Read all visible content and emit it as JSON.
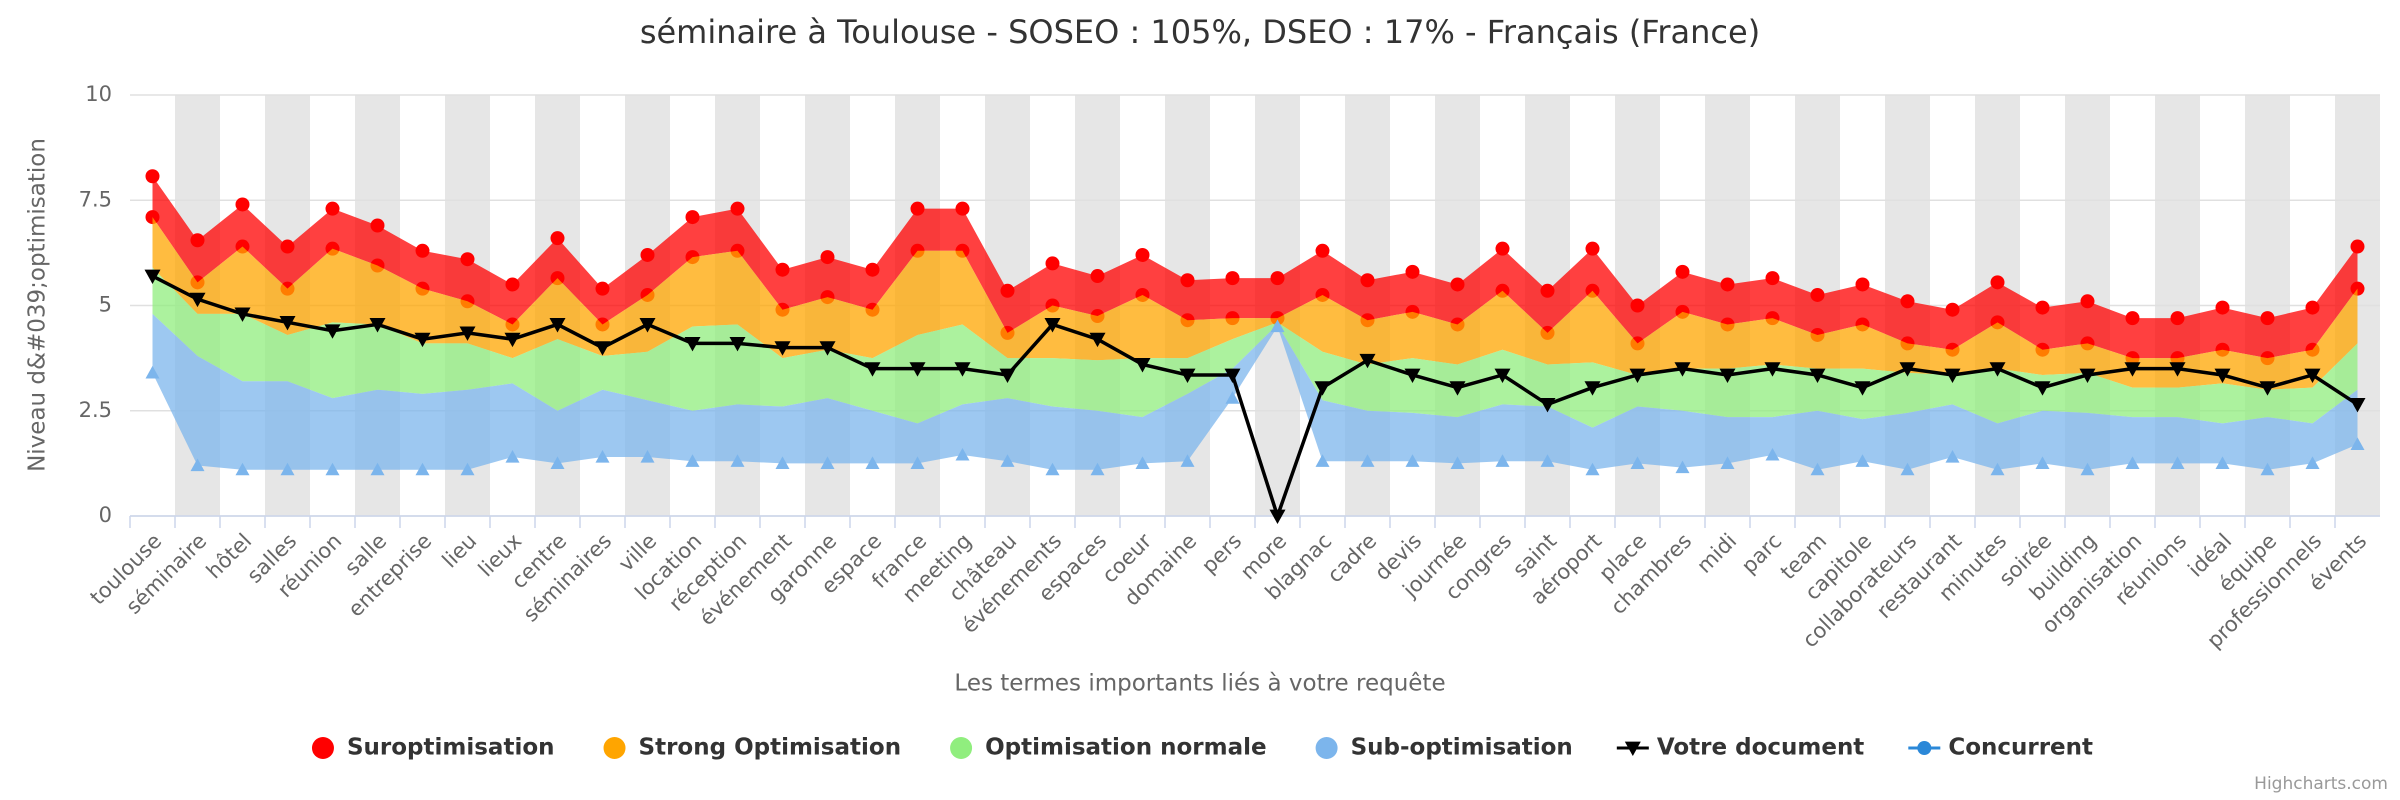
{
  "chart_data": {
    "type": "arearange",
    "title": "séminaire à Toulouse - SOSEO : 105%, DSEO : 17% - Français (France)",
    "x_label": "Les termes importants liés à votre requête",
    "y_label": "Niveau d&#039;optimisation",
    "credits": "Highcharts.com",
    "categories": [
      "toulouse",
      "séminaire",
      "hôtel",
      "salles",
      "réunion",
      "salle",
      "entreprise",
      "lieu",
      "lieux",
      "centre",
      "séminaires",
      "ville",
      "location",
      "réception",
      "événement",
      "garonne",
      "espace",
      "france",
      "meeting",
      "château",
      "événements",
      "espaces",
      "coeur",
      "domaine",
      "pers",
      "more",
      "blagnac",
      "cadre",
      "devis",
      "journée",
      "congres",
      "saint",
      "aéroport",
      "place",
      "chambres",
      "midi",
      "parc",
      "team",
      "capitole",
      "collaborateurs",
      "restaurant",
      "minutes",
      "soirée",
      "building",
      "organisation",
      "réunions",
      "idéal",
      "équipe",
      "professionnels",
      "évents"
    ],
    "ylim": [
      0,
      10
    ],
    "yticks": [
      0,
      2.5,
      5,
      7.5,
      10
    ],
    "grid": true,
    "legend": "bottom",
    "series": [
      {
        "name": "Suroptimisation",
        "color": "#ff0000",
        "type": "arearange",
        "low": [
          7.1,
          5.55,
          6.4,
          5.4,
          6.35,
          5.95,
          5.4,
          5.1,
          4.55,
          5.65,
          4.55,
          5.25,
          6.15,
          6.3,
          4.9,
          5.2,
          4.9,
          6.3,
          6.3,
          4.35,
          5.0,
          4.75,
          5.25,
          4.65,
          4.7,
          4.7,
          5.25,
          4.65,
          4.85,
          4.55,
          5.35,
          4.35,
          5.35,
          4.1,
          4.85,
          4.55,
          4.7,
          4.3,
          4.55,
          4.1,
          3.95,
          4.6,
          3.95,
          4.1,
          3.75,
          3.75,
          3.95,
          3.75,
          3.95,
          5.4
        ],
        "high": [
          8.07,
          6.55,
          7.4,
          6.4,
          7.3,
          6.9,
          6.3,
          6.1,
          5.5,
          6.6,
          5.4,
          6.2,
          7.1,
          7.3,
          5.85,
          6.15,
          5.85,
          7.3,
          7.3,
          5.35,
          6.0,
          5.7,
          6.2,
          5.6,
          5.65,
          5.65,
          6.3,
          5.6,
          5.8,
          5.5,
          6.35,
          5.35,
          6.35,
          5.0,
          5.8,
          5.5,
          5.65,
          5.25,
          5.5,
          5.1,
          4.9,
          5.55,
          4.95,
          5.1,
          4.7,
          4.7,
          4.95,
          4.7,
          4.95,
          6.4
        ]
      },
      {
        "name": "Strong Optimisation",
        "color": "#ffa500",
        "type": "arearange",
        "low": [
          5.9,
          4.8,
          4.8,
          4.3,
          4.6,
          4.55,
          4.1,
          4.1,
          3.75,
          4.2,
          3.8,
          3.9,
          4.5,
          4.55,
          3.75,
          3.95,
          3.75,
          4.3,
          4.55,
          3.75,
          3.75,
          3.7,
          3.75,
          3.75,
          4.2,
          4.6,
          3.9,
          3.6,
          3.75,
          3.6,
          3.95,
          3.6,
          3.65,
          3.35,
          3.5,
          3.5,
          3.6,
          3.5,
          3.5,
          3.4,
          3.35,
          3.5,
          3.35,
          3.4,
          3.05,
          3.05,
          3.15,
          3.0,
          3.05,
          4.1
        ],
        "high": [
          7.1,
          5.55,
          6.4,
          5.4,
          6.35,
          5.95,
          5.4,
          5.1,
          4.55,
          5.65,
          4.55,
          5.25,
          6.15,
          6.3,
          4.9,
          5.2,
          4.9,
          6.3,
          6.3,
          4.35,
          5.0,
          4.75,
          5.25,
          4.65,
          4.7,
          4.7,
          5.25,
          4.65,
          4.85,
          4.55,
          5.35,
          4.35,
          5.35,
          4.1,
          4.85,
          4.55,
          4.7,
          4.3,
          4.55,
          4.1,
          3.95,
          4.6,
          3.95,
          4.1,
          3.75,
          3.75,
          3.95,
          3.75,
          3.95,
          5.4
        ]
      },
      {
        "name": "Optimisation normale",
        "color": "#90ee7e",
        "type": "arearange",
        "low": [
          4.8,
          3.8,
          3.2,
          3.2,
          2.8,
          3.0,
          2.9,
          3.0,
          3.15,
          2.5,
          3.0,
          2.75,
          2.5,
          2.65,
          2.6,
          2.8,
          2.5,
          2.2,
          2.65,
          2.8,
          2.6,
          2.5,
          2.35,
          2.9,
          3.5,
          4.55,
          2.75,
          2.5,
          2.45,
          2.35,
          2.65,
          2.6,
          2.1,
          2.6,
          2.5,
          2.35,
          2.35,
          2.5,
          2.3,
          2.45,
          2.65,
          2.2,
          2.5,
          2.45,
          2.35,
          2.35,
          2.2,
          2.35,
          2.2,
          3.0
        ],
        "high": [
          5.9,
          4.8,
          4.8,
          4.3,
          4.6,
          4.55,
          4.1,
          4.1,
          3.75,
          4.2,
          3.8,
          3.9,
          4.5,
          4.55,
          3.75,
          3.95,
          3.75,
          4.3,
          4.55,
          3.75,
          3.75,
          3.7,
          3.75,
          3.75,
          4.2,
          4.6,
          3.9,
          3.6,
          3.75,
          3.6,
          3.95,
          3.6,
          3.65,
          3.35,
          3.5,
          3.5,
          3.6,
          3.5,
          3.5,
          3.4,
          3.35,
          3.5,
          3.35,
          3.4,
          3.05,
          3.05,
          3.15,
          3.0,
          3.05,
          4.1
        ]
      },
      {
        "name": "Sub-optimisation",
        "color": "#7cb5ec",
        "type": "arearange",
        "low": [
          3.4,
          1.2,
          1.1,
          1.1,
          1.1,
          1.1,
          1.1,
          1.1,
          1.4,
          1.25,
          1.4,
          1.4,
          1.3,
          1.3,
          1.25,
          1.25,
          1.25,
          1.25,
          1.45,
          1.3,
          1.1,
          1.1,
          1.25,
          1.3,
          2.8,
          4.5,
          1.3,
          1.3,
          1.3,
          1.25,
          1.3,
          1.3,
          1.1,
          1.25,
          1.15,
          1.25,
          1.45,
          1.1,
          1.3,
          1.1,
          1.4,
          1.1,
          1.25,
          1.1,
          1.25,
          1.25,
          1.25,
          1.1,
          1.25,
          1.7
        ],
        "high": [
          4.8,
          3.8,
          3.2,
          3.2,
          2.8,
          3.0,
          2.9,
          3.0,
          3.15,
          2.5,
          3.0,
          2.75,
          2.5,
          2.65,
          2.6,
          2.8,
          2.5,
          2.2,
          2.65,
          2.8,
          2.6,
          2.5,
          2.35,
          2.9,
          3.5,
          4.55,
          2.75,
          2.5,
          2.45,
          2.35,
          2.65,
          2.6,
          2.1,
          2.6,
          2.5,
          2.35,
          2.35,
          2.5,
          2.3,
          2.45,
          2.65,
          2.2,
          2.5,
          2.45,
          2.35,
          2.35,
          2.2,
          2.35,
          2.2,
          3.0
        ]
      },
      {
        "name": "Votre document",
        "color": "#000000",
        "type": "line",
        "values": [
          5.7,
          5.15,
          4.8,
          4.6,
          4.4,
          4.55,
          4.2,
          4.35,
          4.2,
          4.55,
          4.0,
          4.55,
          4.1,
          4.1,
          4.0,
          4.0,
          3.5,
          3.5,
          3.5,
          3.35,
          4.55,
          4.2,
          3.6,
          3.35,
          3.35,
          0,
          3.05,
          3.7,
          3.35,
          3.05,
          3.35,
          2.65,
          3.05,
          3.35,
          3.5,
          3.35,
          3.5,
          3.35,
          3.05,
          3.5,
          3.35,
          3.5,
          3.05,
          3.35,
          3.5,
          3.5,
          3.35,
          3.05,
          3.35,
          2.65
        ]
      },
      {
        "name": "Concurrent",
        "color": "#2b88d8",
        "type": "line",
        "values": [
          null,
          null,
          null,
          null,
          null,
          null,
          null,
          null,
          null,
          null,
          null,
          null,
          null,
          null,
          null,
          null,
          null,
          null,
          null,
          null,
          null,
          null,
          null,
          null,
          null,
          null,
          null,
          null,
          null,
          null,
          null,
          null,
          null,
          null,
          null,
          null,
          null,
          null,
          null,
          null,
          null,
          null,
          null,
          null,
          null,
          null,
          null,
          null,
          null,
          null
        ]
      }
    ]
  }
}
